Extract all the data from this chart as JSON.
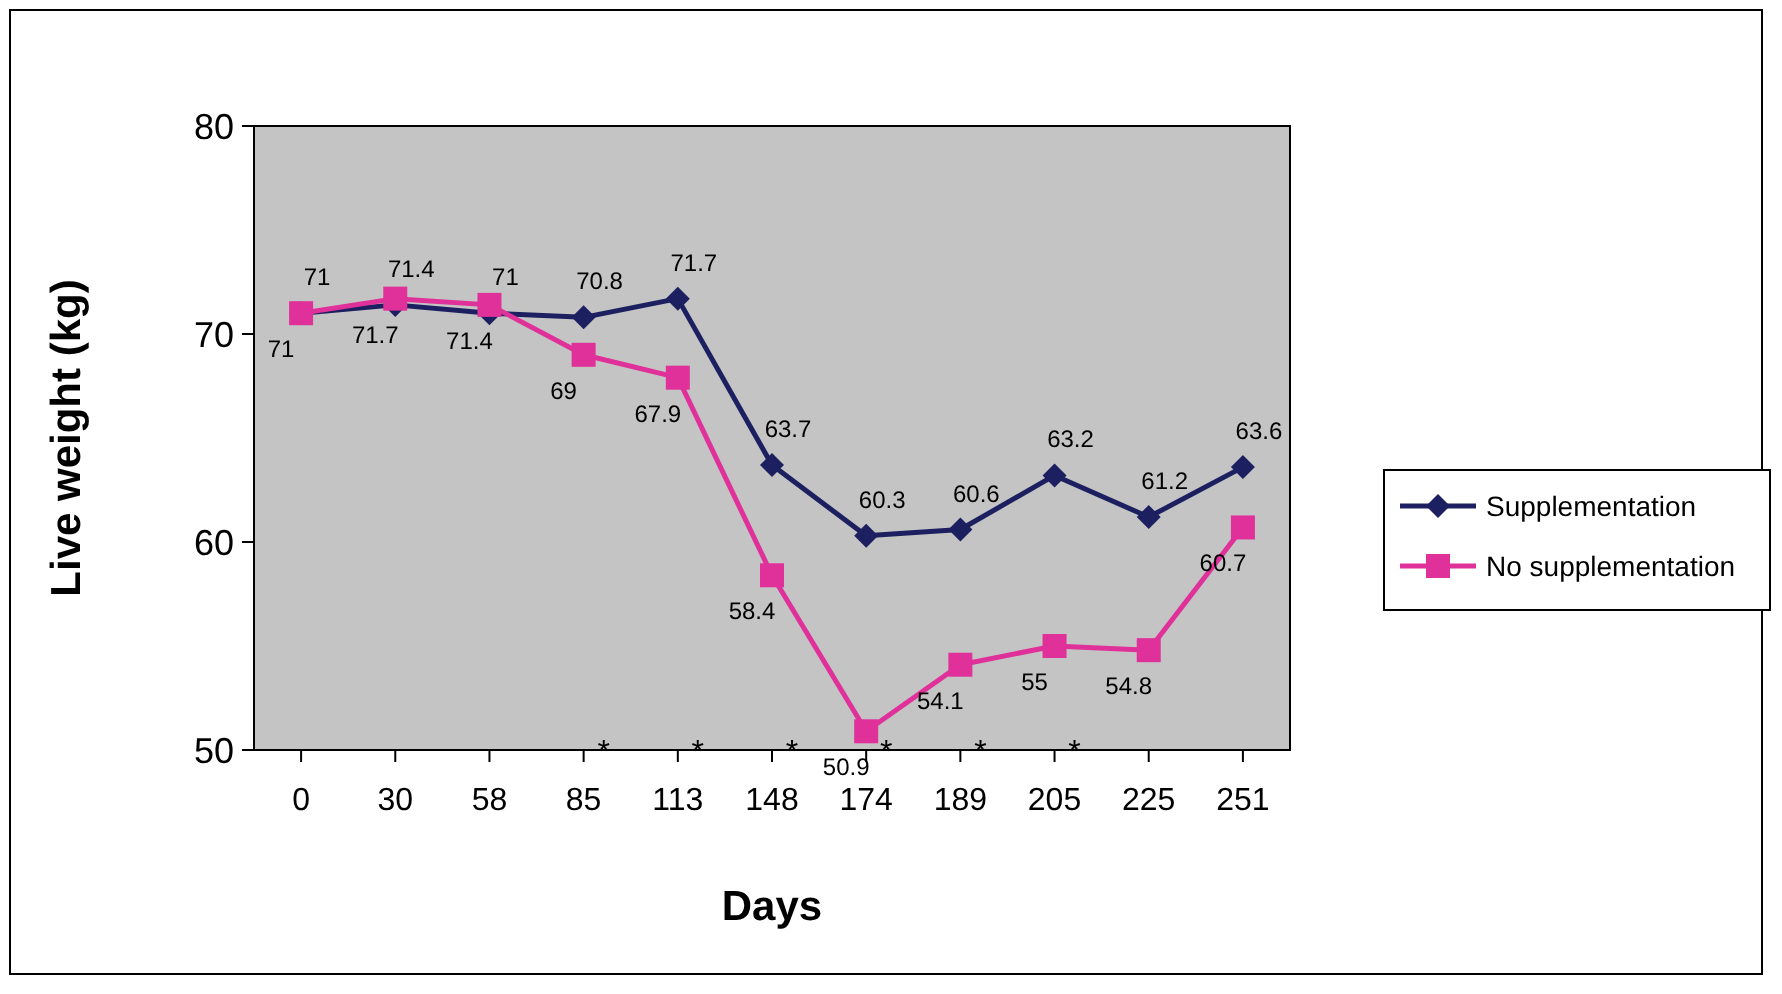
{
  "chart_data": {
    "type": "line",
    "xlabel": "Days",
    "ylabel": "Live weight (kg)",
    "categories": [
      "0",
      "30",
      "58",
      "85",
      "113",
      "148",
      "174",
      "189",
      "205",
      "225",
      "251"
    ],
    "series": [
      {
        "name": "Supplementation",
        "color": "#1c2060",
        "marker": "diamond",
        "values": [
          71,
          71.4,
          71,
          70.8,
          71.7,
          63.7,
          60.3,
          60.6,
          63.2,
          61.2,
          63.6
        ]
      },
      {
        "name": "No supplementation",
        "color": "#e0309a",
        "marker": "square",
        "values": [
          71,
          71.7,
          71.4,
          69,
          67.9,
          58.4,
          50.9,
          54.1,
          55,
          54.8,
          60.7
        ]
      }
    ],
    "ylim": [
      50,
      80
    ],
    "yticks": [
      50,
      60,
      70,
      80
    ],
    "data_labels": true,
    "legend": "right",
    "grid": false,
    "annotations": [
      "*",
      "*",
      "*",
      "*",
      "*",
      "*"
    ]
  }
}
